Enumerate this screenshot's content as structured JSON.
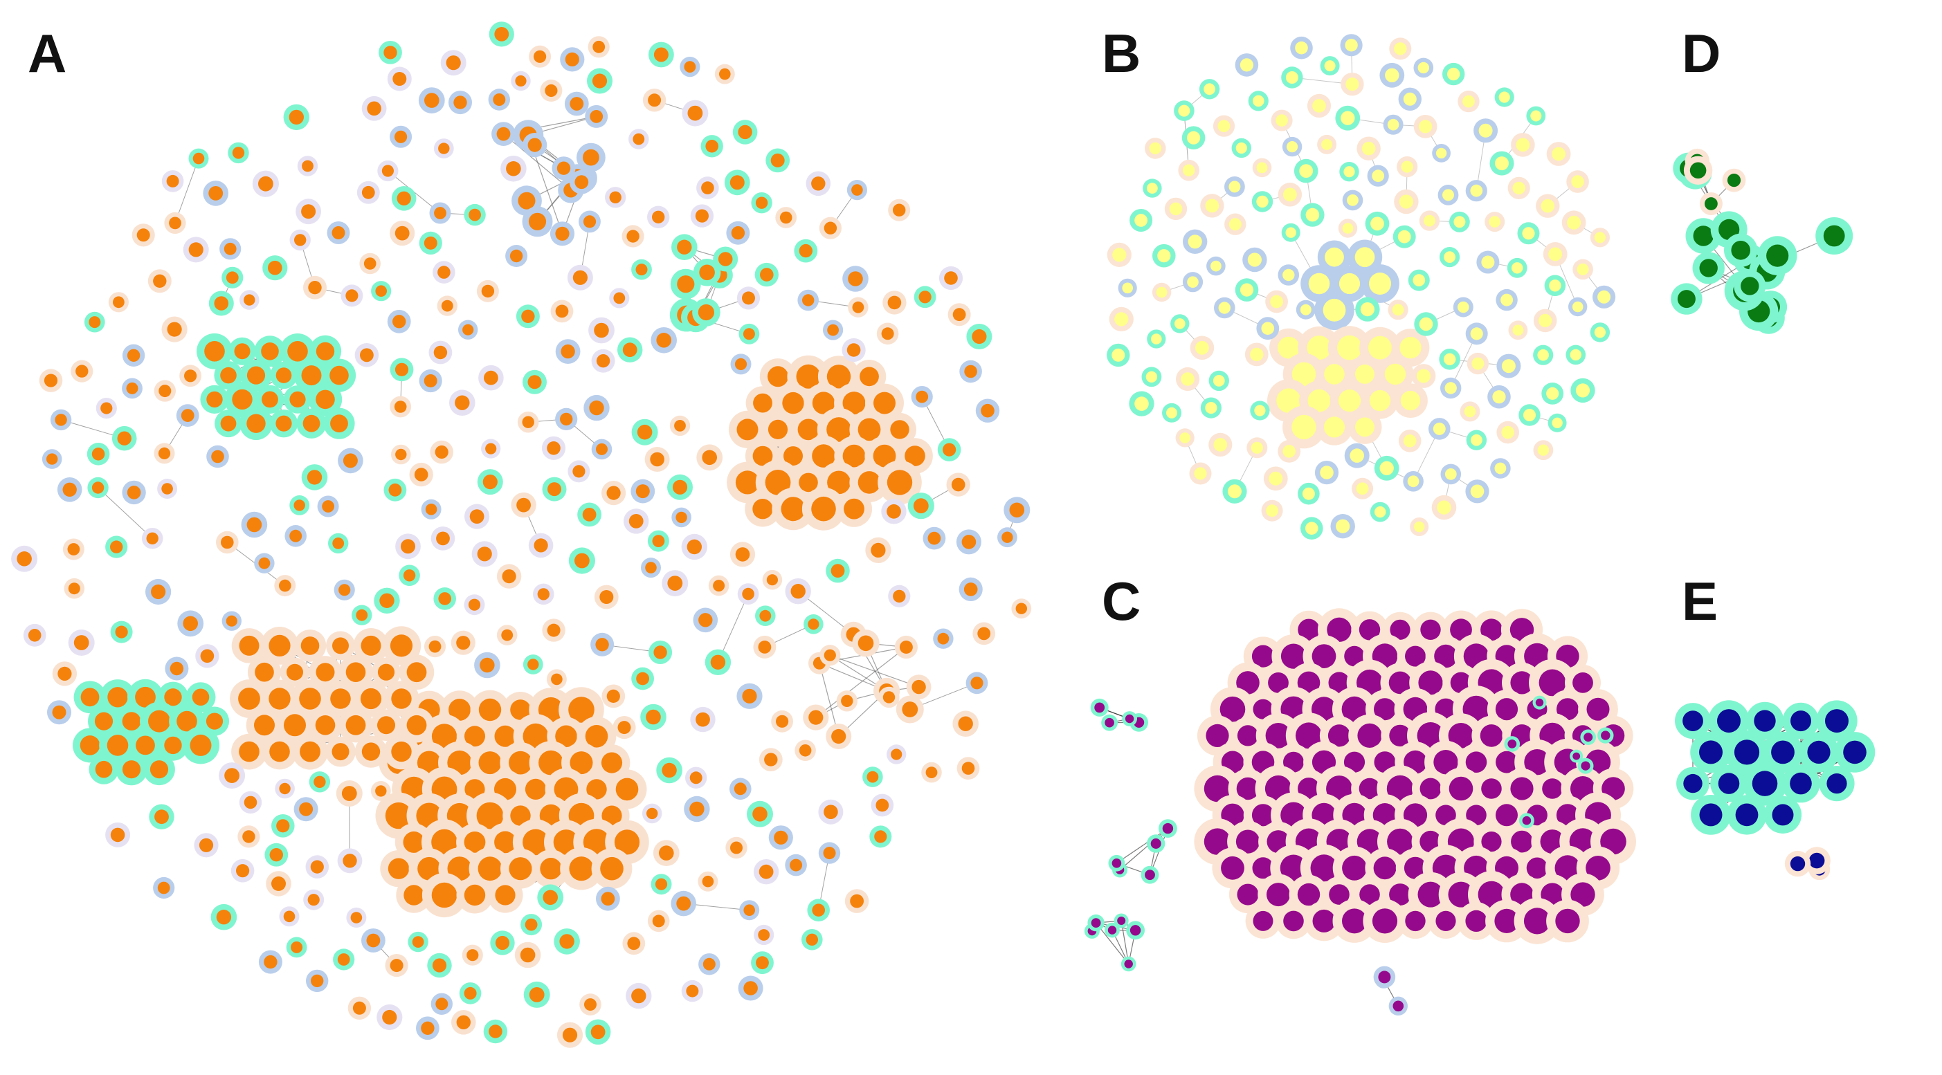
{
  "panels": [
    {
      "id": "A",
      "label": "A",
      "node_color": "#F5820B",
      "edge_color": "#555555",
      "ring_colors": [
        "#F9E1CF",
        "#B9CEEB",
        "#7FF5CF",
        "#E6E1F2"
      ]
    },
    {
      "id": "B",
      "label": "B",
      "node_color": "#FFFF8A",
      "edge_color": "#999999",
      "ring_colors": [
        "#FBE4D3",
        "#B9CEEB",
        "#7FF5CF"
      ]
    },
    {
      "id": "C",
      "label": "C",
      "node_color": "#95098C",
      "edge_color": "#111111",
      "ring_colors": [
        "#FBE4D3",
        "#B9CEEB",
        "#7FF5CF"
      ]
    },
    {
      "id": "D",
      "label": "D",
      "node_color": "#0A7A12",
      "edge_color": "#444444",
      "ring_colors": [
        "#7FF5CF",
        "#FBE4D3"
      ]
    },
    {
      "id": "E",
      "label": "E",
      "node_color": "#0B0D96",
      "edge_color": "#222222",
      "ring_colors": [
        "#7FF5CF",
        "#FBE4D3"
      ]
    }
  ]
}
